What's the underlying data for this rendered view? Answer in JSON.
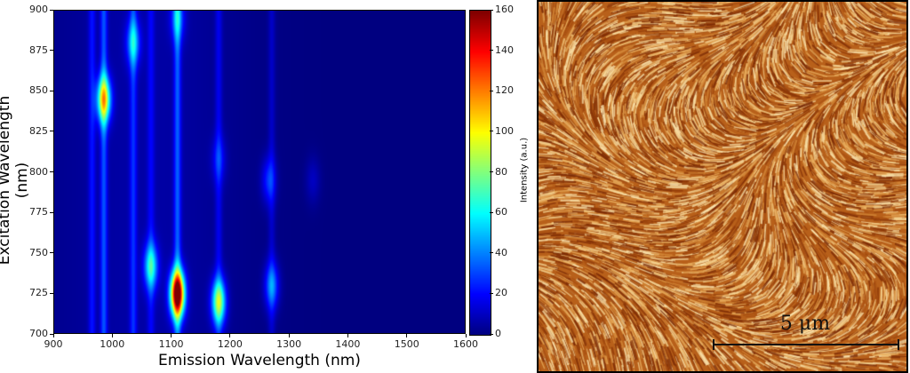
{
  "chart_data": {
    "type": "heatmap",
    "xlabel": "Emission Wavelength (nm)",
    "ylabel": "Excitation Wavelength (nm)",
    "xlim": [
      900,
      1600
    ],
    "ylim": [
      700,
      900
    ],
    "xticks": [
      "900",
      "1000",
      "1100",
      "1200",
      "1300",
      "1400",
      "1500",
      "1600"
    ],
    "yticks": [
      "700",
      "725",
      "750",
      "775",
      "800",
      "825",
      "850",
      "875",
      "900"
    ],
    "colorbar": {
      "label": "Intensity (a.u.)",
      "range": [
        0,
        160
      ],
      "ticks": [
        "0",
        "20",
        "40",
        "60",
        "80",
        "100",
        "120",
        "140",
        "160"
      ],
      "colormap": "jet"
    },
    "peaks": [
      {
        "emission": 1110,
        "excitation": 725,
        "intensity": 160
      },
      {
        "emission": 1180,
        "excitation": 720,
        "intensity": 80
      },
      {
        "emission": 1065,
        "excitation": 742,
        "intensity": 55
      },
      {
        "emission": 985,
        "excitation": 845,
        "intensity": 90
      },
      {
        "emission": 1270,
        "excitation": 730,
        "intensity": 38
      },
      {
        "emission": 1035,
        "excitation": 880,
        "intensity": 40
      },
      {
        "emission": 1110,
        "excitation": 895,
        "intensity": 32
      },
      {
        "emission": 1265,
        "excitation": 795,
        "intensity": 25
      },
      {
        "emission": 1180,
        "excitation": 808,
        "intensity": 18
      },
      {
        "emission": 1340,
        "excitation": 795,
        "intensity": 10
      }
    ],
    "streaks": [
      {
        "emission": 965,
        "intensity": 18
      },
      {
        "emission": 985,
        "intensity": 28
      },
      {
        "emission": 1035,
        "intensity": 22
      },
      {
        "emission": 1065,
        "intensity": 14
      },
      {
        "emission": 1110,
        "intensity": 30
      },
      {
        "emission": 1180,
        "intensity": 14
      },
      {
        "emission": 1270,
        "intensity": 10
      }
    ]
  },
  "afm": {
    "scale_label": "5 μm"
  }
}
